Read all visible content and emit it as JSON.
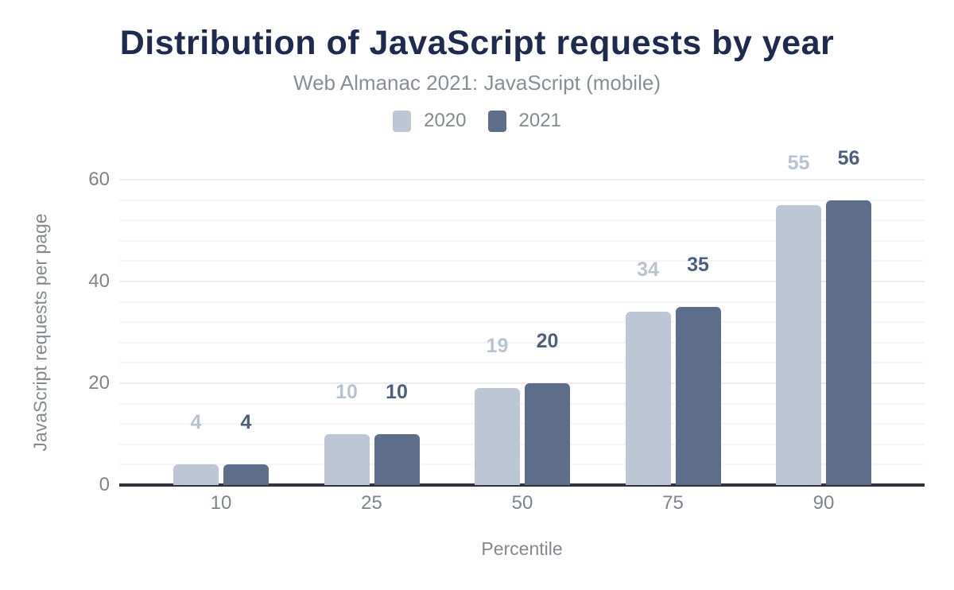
{
  "chart_data": {
    "type": "bar",
    "title": "Distribution of JavaScript requests by year",
    "subtitle": "Web Almanac 2021: JavaScript (mobile)",
    "xlabel": "Percentile",
    "ylabel": "JavaScript requests per page",
    "categories": [
      "10",
      "25",
      "50",
      "75",
      "90"
    ],
    "series": [
      {
        "name": "2020",
        "values": [
          4,
          10,
          19,
          34,
          55
        ],
        "color": "#bdc6d5",
        "label_color": "#b8c2d3"
      },
      {
        "name": "2021",
        "values": [
          4,
          10,
          20,
          35,
          56
        ],
        "color": "#5e6e8a",
        "label_color": "#4e5e7d"
      }
    ],
    "value_labels": true,
    "y_ticks": [
      0,
      20,
      40,
      60
    ],
    "ylim": [
      0,
      60
    ],
    "minor_grid_step": 4,
    "grid": true,
    "legend_position": "top",
    "colors": {
      "title": "#1f2b4e",
      "muted_text": "#84888f",
      "axis_line": "#33323a",
      "minor_grid": "#f5f5f5",
      "major_grid": "#ececec",
      "background": "#ffffff"
    }
  }
}
